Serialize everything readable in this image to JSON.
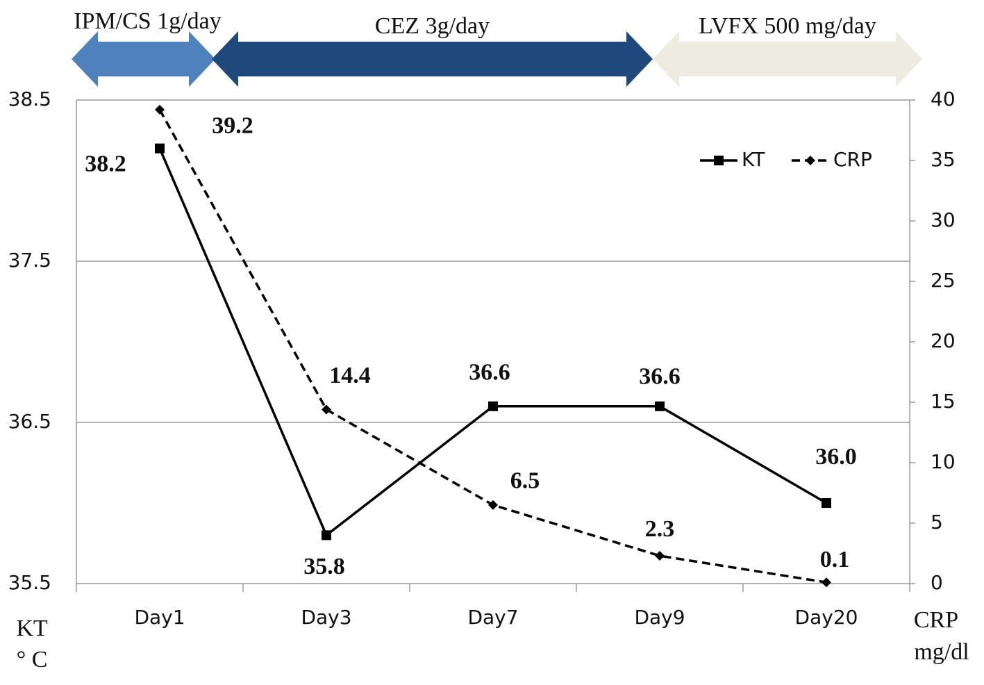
{
  "chart_data": {
    "type": "line",
    "treatments": [
      {
        "label": "IPM/CS 1g/day",
        "color": "#4f81bd"
      },
      {
        "label": "CEZ 3g/day",
        "color": "#1f497d"
      },
      {
        "label": "LVFX 500 mg/day",
        "color": "#eeece1"
      }
    ],
    "categories": [
      "Day1",
      "Day3",
      "Day7",
      "Day9",
      "Day20"
    ],
    "series": [
      {
        "name": "KT",
        "color": "#000000",
        "values": [
          38.2,
          35.8,
          36.6,
          36.6,
          36.0
        ],
        "value_labels": [
          "38.2",
          "35.8",
          "36.6",
          "36.6",
          "36.0"
        ]
      },
      {
        "name": "CRP",
        "color": "#000000",
        "axis": "y2",
        "values": [
          39.2,
          14.4,
          6.5,
          2.3,
          0.1
        ]
      }
    ],
    "ylim": [
      35.5,
      38.5
    ],
    "yticks": [
      35.5,
      36.5,
      37.5,
      38.5
    ],
    "y2lim": [
      0,
      40
    ],
    "y2ticks": [
      0,
      5,
      10,
      15,
      20,
      25,
      30,
      35,
      40
    ],
    "ylabel": "KT",
    "ylabel_unit": "°  C",
    "y2label": "CRP",
    "y2label_unit": "mg/dl",
    "grid": true,
    "legend": "upper right"
  }
}
